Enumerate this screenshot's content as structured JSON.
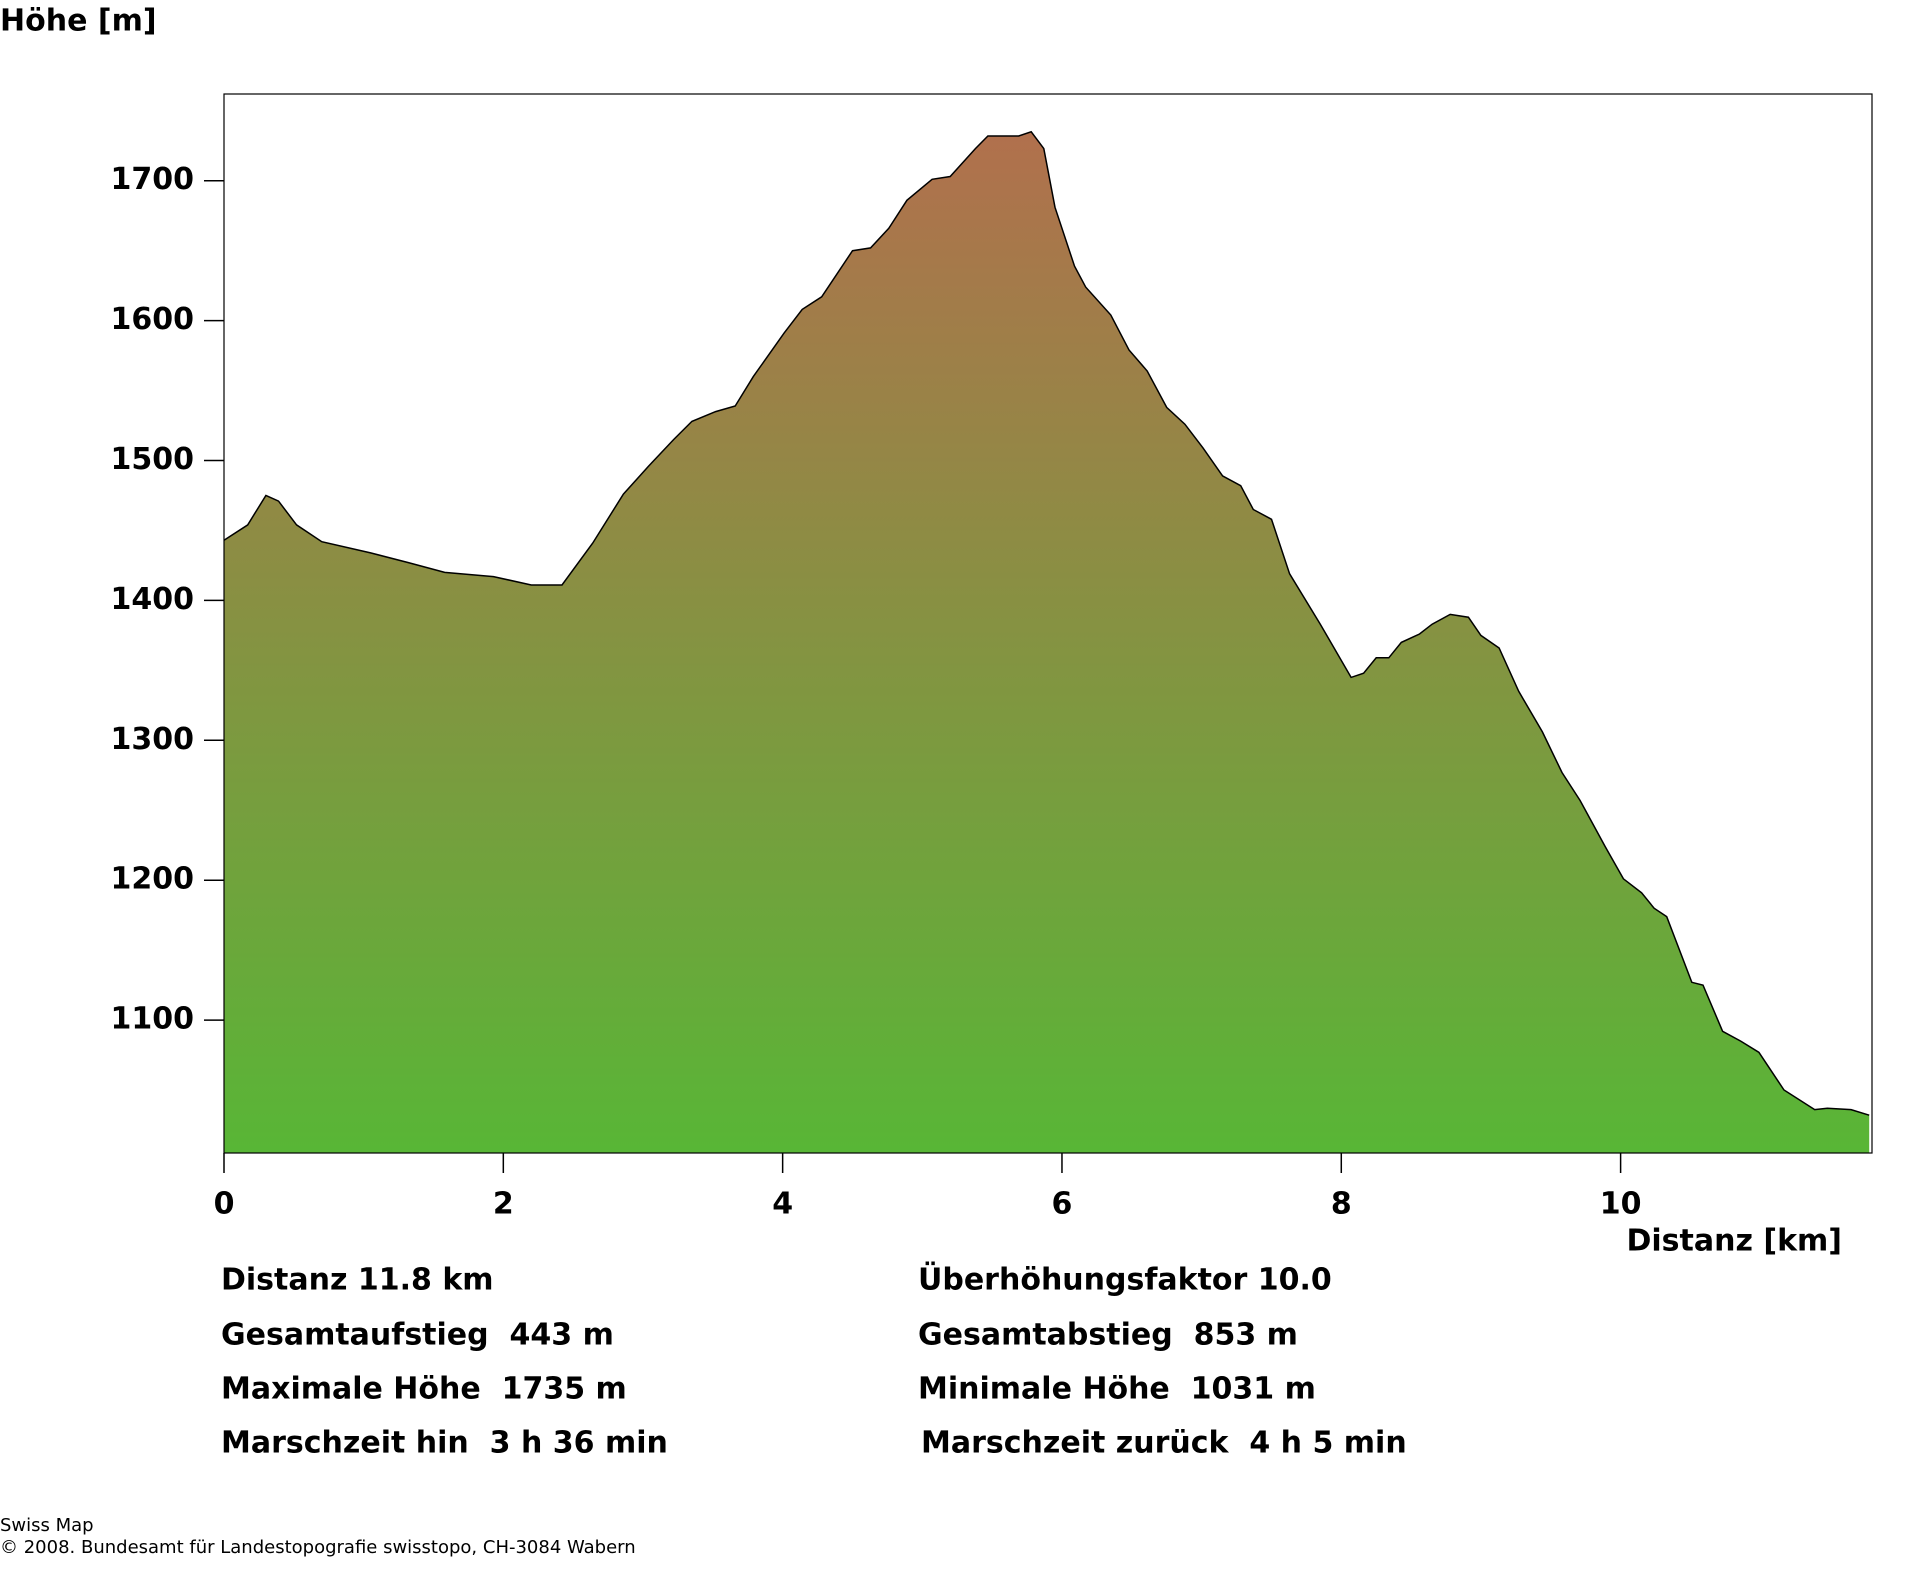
{
  "chart_data": {
    "type": "area",
    "ylabel": "Höhe [m]",
    "xlabel": "Distanz [km]",
    "xlim": [
      0,
      11.8
    ],
    "ylim": [
      1005,
      1762
    ],
    "xticks": [
      0,
      2,
      4,
      6,
      8,
      10
    ],
    "yticks": [
      1100,
      1200,
      1300,
      1400,
      1500,
      1600,
      1700
    ],
    "gradient_colors": [
      "#58b636",
      "#b1704d"
    ],
    "line_color": "#000000",
    "x": [
      0,
      0.17,
      0.3,
      0.39,
      0.52,
      0.7,
      1.05,
      1.32,
      1.58,
      1.93,
      2.2,
      2.42,
      2.64,
      2.86,
      3.04,
      3.22,
      3.35,
      3.52,
      3.66,
      3.79,
      4.01,
      4.14,
      4.28,
      4.5,
      4.63,
      4.76,
      4.89,
      5.07,
      5.2,
      5.38,
      5.47,
      5.69,
      5.78,
      5.87,
      5.95,
      6.09,
      6.17,
      6.35,
      6.48,
      6.61,
      6.75,
      6.88,
      7.01,
      7.15,
      7.28,
      7.37,
      7.5,
      7.63,
      7.85,
      8.07,
      8.16,
      8.25,
      8.34,
      8.43,
      8.56,
      8.65,
      8.78,
      8.91,
      9.0,
      9.13,
      9.27,
      9.44,
      9.58,
      9.71,
      9.89,
      10.02,
      10.15,
      10.24,
      10.33,
      10.51,
      10.59,
      10.73,
      10.86,
      10.99,
      11.17,
      11.39,
      11.48,
      11.65,
      11.78
    ],
    "values": [
      1443,
      1454,
      1475,
      1471,
      1454,
      1442,
      1434,
      1427,
      1420,
      1417,
      1411,
      1411,
      1441,
      1476,
      1496,
      1515,
      1528,
      1535,
      1539,
      1560,
      1591,
      1608,
      1617,
      1650,
      1652,
      1666,
      1686,
      1701,
      1703,
      1723,
      1732,
      1732,
      1735,
      1723,
      1681,
      1639,
      1624,
      1604,
      1579,
      1564,
      1538,
      1526,
      1509,
      1489,
      1482,
      1465,
      1458,
      1419,
      1383,
      1345,
      1348,
      1359,
      1359,
      1370,
      1376,
      1383,
      1390,
      1388,
      1375,
      1366,
      1335,
      1306,
      1277,
      1257,
      1224,
      1201,
      1191,
      1180,
      1174,
      1127,
      1125,
      1092,
      1085,
      1077,
      1050,
      1036,
      1037,
      1036,
      1032
    ]
  },
  "stats": [
    [
      "Distanz 11.8 km",
      "Überhöhungsfaktor 10.0"
    ],
    [
      "Gesamtaufstieg  443 m",
      "Gesamtabstieg  853 m"
    ],
    [
      "Maximale Höhe  1735 m",
      "Minimale Höhe  1031 m"
    ],
    [
      "Marschzeit hin  3 h 36 min",
      "Marschzeit zurück  4 h 5 min"
    ]
  ],
  "footer": [
    "Swiss Map",
    "© 2008. Bundesamt für Landestopografie swisstopo, CH-3084 Wabern"
  ]
}
